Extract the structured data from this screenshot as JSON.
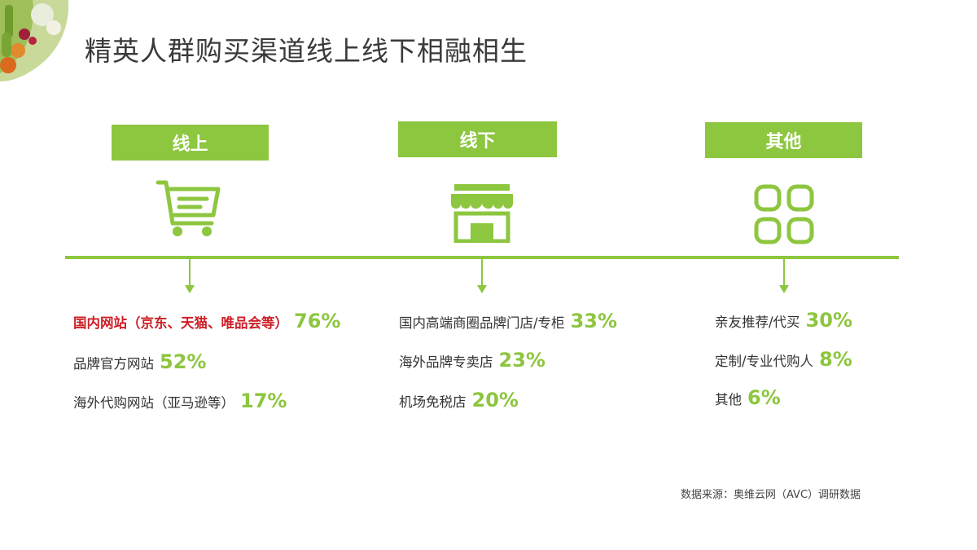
{
  "title": "精英人群购买渠道线上线下相融相生",
  "categories": [
    {
      "id": "online",
      "header": "线上",
      "icon": "shopping-cart-icon",
      "items": [
        {
          "label": "国内网站（京东、天猫、唯品会等）",
          "value": "76%",
          "highlight": true
        },
        {
          "label": "品牌官方网站",
          "value": "52%",
          "highlight": false
        },
        {
          "label": "海外代购网站（亚马逊等）",
          "value": "17%",
          "highlight": false
        }
      ]
    },
    {
      "id": "offline",
      "header": "线下",
      "icon": "storefront-icon",
      "items": [
        {
          "label": "国内高端商圈品牌门店/专柜",
          "value": "33%",
          "highlight": false
        },
        {
          "label": "海外品牌专卖店",
          "value": "23%",
          "highlight": false
        },
        {
          "label": "机场免税店",
          "value": "20%",
          "highlight": false
        }
      ]
    },
    {
      "id": "other",
      "header": "其他",
      "icon": "four-squares-icon",
      "items": [
        {
          "label": "亲友推荐/代买",
          "value": "30%",
          "highlight": false
        },
        {
          "label": "定制/专业代购人",
          "value": "8%",
          "highlight": false
        },
        {
          "label": "其他",
          "value": "6%",
          "highlight": false
        }
      ]
    }
  ],
  "source": "数据来源：奥维云网（AVC）调研数据",
  "colors": {
    "accent": "#8dc63f",
    "highlight": "#cc1f26",
    "text": "#333333"
  }
}
